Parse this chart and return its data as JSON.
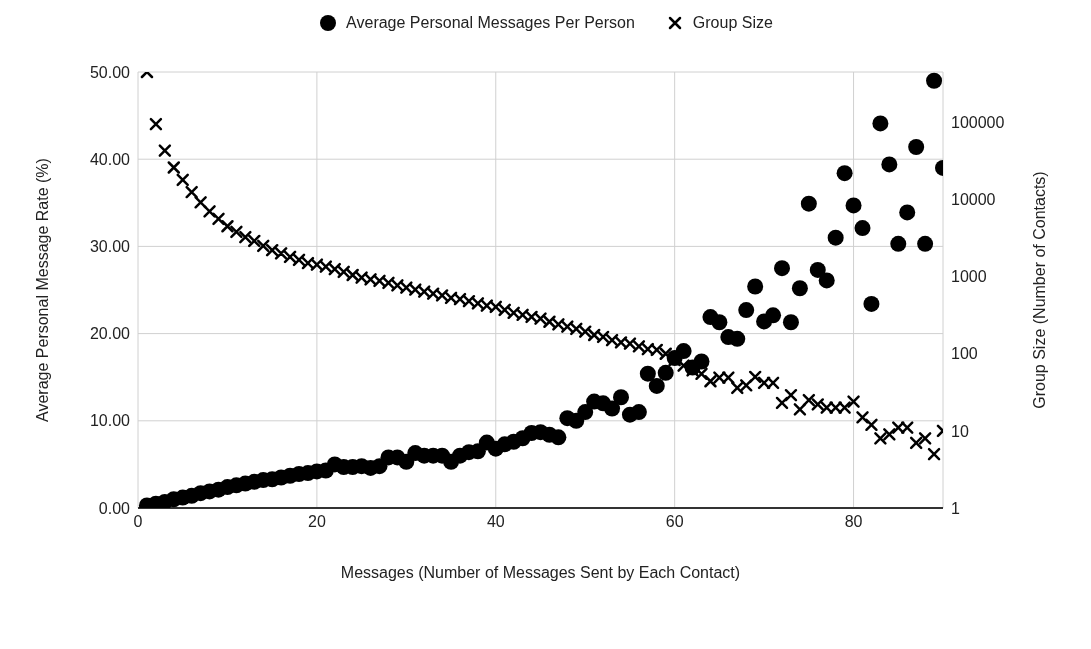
{
  "chart_data": {
    "type": "scatter",
    "xlabel": "Messages (Number of Messages Sent by Each Contact)",
    "ylabel": "Average Personal Message Rate (%)",
    "y2label": "Group Size (Number of Contacts)",
    "legend": "top",
    "grid": true,
    "log": "y2",
    "xlim": [
      0,
      90
    ],
    "xticks": [
      0,
      20,
      40,
      60,
      80
    ],
    "ylim": [
      0,
      50
    ],
    "yticks": [
      {
        "value": 0,
        "label": "0.00"
      },
      {
        "value": 10,
        "label": "10.00"
      },
      {
        "value": 20,
        "label": "20.00"
      },
      {
        "value": 30,
        "label": "30.00"
      },
      {
        "value": 40,
        "label": "40.00"
      },
      {
        "value": 50,
        "label": "50.00"
      }
    ],
    "y2lim": [
      1,
      450000
    ],
    "y2ticks": [
      1,
      10,
      100,
      1000,
      10000,
      100000
    ],
    "x": [
      1,
      2,
      3,
      4,
      5,
      6,
      7,
      8,
      9,
      10,
      11,
      12,
      13,
      14,
      15,
      16,
      17,
      18,
      19,
      20,
      21,
      22,
      23,
      24,
      25,
      26,
      27,
      28,
      29,
      30,
      31,
      32,
      33,
      34,
      35,
      36,
      37,
      38,
      39,
      40,
      41,
      42,
      43,
      44,
      45,
      46,
      47,
      48,
      49,
      50,
      51,
      52,
      53,
      54,
      55,
      56,
      57,
      58,
      59,
      60,
      61,
      62,
      63,
      64,
      65,
      66,
      67,
      68,
      69,
      70,
      71,
      72,
      73,
      74,
      75,
      76,
      77,
      78,
      79,
      80,
      81,
      82,
      83,
      84,
      85,
      86,
      87,
      88,
      89,
      90
    ],
    "series": [
      {
        "name": "Average Personal Messages Per Person",
        "color": "#000000",
        "marker": "circle",
        "values": [
          0.3,
          0.5,
          0.7,
          1.0,
          1.2,
          1.4,
          1.7,
          1.9,
          2.1,
          2.4,
          2.6,
          2.8,
          3.0,
          3.2,
          3.3,
          3.5,
          3.7,
          3.9,
          4.0,
          4.2,
          4.3,
          5.0,
          4.7,
          4.7,
          4.8,
          4.6,
          4.8,
          5.8,
          5.8,
          5.3,
          6.3,
          6.0,
          6.0,
          6.0,
          5.3,
          6.0,
          6.4,
          6.5,
          7.5,
          6.8,
          7.3,
          7.6,
          8.0,
          8.6,
          8.7,
          8.4,
          8.1,
          10.3,
          10.0,
          11.0,
          12.2,
          12.0,
          11.4,
          12.7,
          10.7,
          11.0,
          15.4,
          14.0,
          15.5,
          17.2,
          18.0,
          16.1,
          16.8,
          21.9,
          21.3,
          19.6,
          19.4,
          22.7,
          25.4,
          21.4,
          22.1,
          27.5,
          21.3,
          25.2,
          34.9,
          27.3,
          26.1,
          31.0,
          38.4,
          34.7,
          32.1,
          23.4,
          44.1,
          39.4,
          30.3,
          33.9,
          41.4,
          30.3,
          49.0,
          39.0
        ]
      },
      {
        "name": "Group Size",
        "color": "#000000",
        "marker": "cross",
        "axis": "y2",
        "values": [
          450000,
          95000,
          43000,
          26000,
          18000,
          12500,
          9200,
          7000,
          5600,
          4500,
          3800,
          3250,
          2900,
          2500,
          2200,
          2000,
          1800,
          1650,
          1500,
          1430,
          1350,
          1250,
          1150,
          1050,
          970,
          920,
          880,
          830,
          770,
          720,
          680,
          640,
          600,
          570,
          530,
          510,
          480,
          450,
          420,
          405,
          370,
          340,
          320,
          300,
          285,
          260,
          240,
          225,
          210,
          193,
          175,
          165,
          150,
          140,
          135,
          125,
          115,
          112,
          100,
          83,
          70,
          61,
          55,
          44,
          49,
          49,
          36,
          39,
          50,
          42,
          42,
          23,
          29,
          19,
          25,
          22,
          20,
          20,
          20,
          24,
          15,
          12,
          8,
          9,
          11,
          11,
          7,
          8,
          5,
          10
        ]
      }
    ]
  }
}
